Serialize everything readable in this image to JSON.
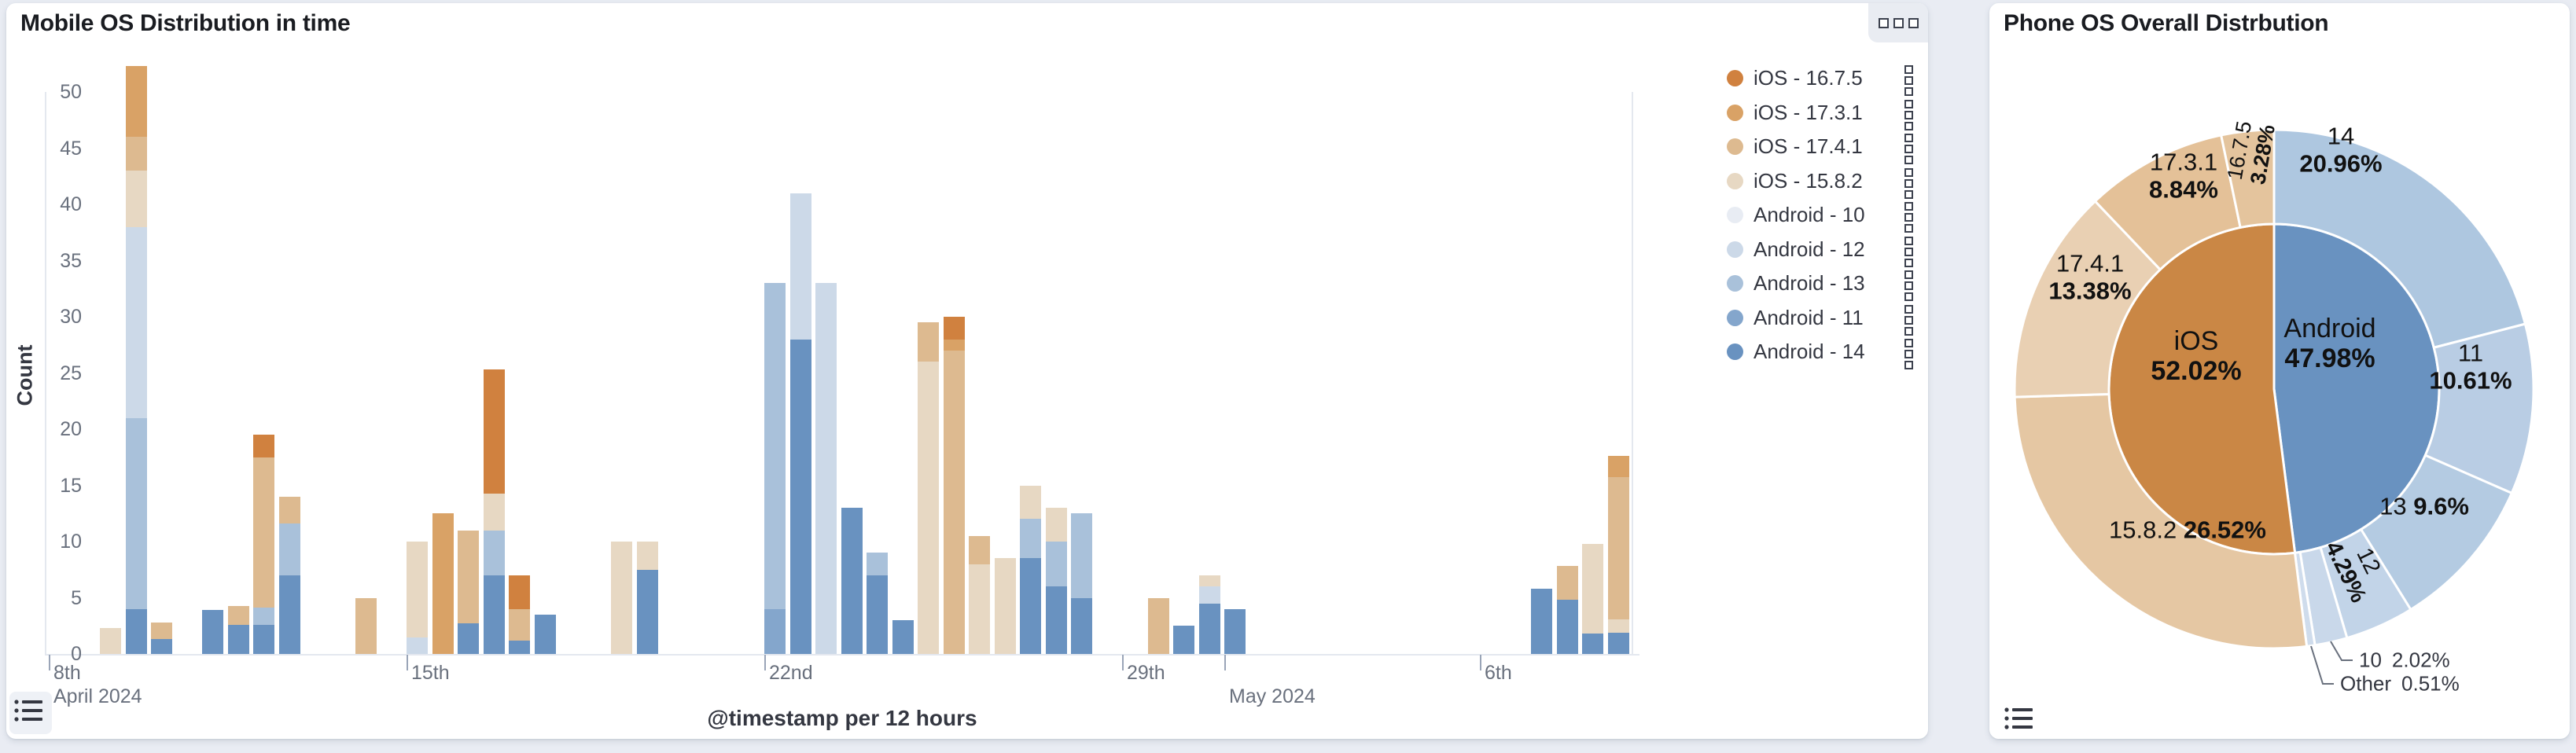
{
  "colors": {
    "page_bg": "#e9ecf3",
    "panel_bg": "#ffffff",
    "title_text": "#1a1c21",
    "axis_text": "#69707d",
    "label_text": "#343741",
    "axis_line": "#e4e8ef",
    "tick_mark": "#9aa5b8"
  },
  "left_panel": {
    "title": "Mobile OS Distribution in time",
    "legend": {
      "items": [
        {
          "label": "iOS - 16.7.5",
          "color": "#d0813f"
        },
        {
          "label": "iOS - 17.3.1",
          "color": "#d9a266"
        },
        {
          "label": "iOS - 17.4.1",
          "color": "#ddba90"
        },
        {
          "label": "iOS - 15.8.2",
          "color": "#e7d8c3"
        },
        {
          "label": "Android - 10",
          "color": "#e8ecf3"
        },
        {
          "label": "Android - 12",
          "color": "#ccd9e8"
        },
        {
          "label": "Android - 13",
          "color": "#a9c1da"
        },
        {
          "label": "Android - 11",
          "color": "#84a6cc"
        },
        {
          "label": "Android - 14",
          "color": "#6992c0"
        }
      ]
    }
  },
  "right_panel": {
    "title": "Phone OS Overall Distrbution"
  },
  "chart_data": [
    {
      "type": "bar",
      "stacked": true,
      "title": "Mobile OS Distribution in time",
      "xlabel": "@timestamp per 12 hours",
      "ylabel": "Count",
      "ylim": [
        0,
        52.5
      ],
      "grid": false,
      "legend_position": "right",
      "y_ticks": [
        0,
        5,
        10,
        15,
        20,
        25,
        30,
        35,
        40,
        45,
        50
      ],
      "x_ticks": [
        {
          "i": 2,
          "line1": "8th",
          "line2": "April 2024"
        },
        {
          "i": 16,
          "line1": "15th"
        },
        {
          "i": 30,
          "line1": "22nd"
        },
        {
          "i": 44,
          "line1": "29th"
        },
        {
          "i": 48,
          "line2": "May 2024"
        },
        {
          "i": 58,
          "line1": "6th"
        }
      ],
      "bucket_hours": 12,
      "stack_order": [
        "Android - 14",
        "Android - 11",
        "Android - 13",
        "Android - 12",
        "Android - 10",
        "iOS - 15.8.2",
        "iOS - 17.4.1",
        "iOS - 17.3.1",
        "iOS - 16.7.5"
      ],
      "series_colors": {
        "iOS - 16.7.5": "#d0813f",
        "iOS - 17.3.1": "#d9a266",
        "iOS - 17.4.1": "#ddba90",
        "iOS - 15.8.2": "#e7d8c3",
        "Android - 10": "#e8ecf3",
        "Android - 12": "#ccd9e8",
        "Android - 13": "#a9c1da",
        "Android - 11": "#84a6cc",
        "Android - 14": "#6992c0"
      },
      "bars": [
        {
          "i": 4,
          "stack": {
            "iOS - 15.8.2": 2.3
          }
        },
        {
          "i": 5,
          "stack": {
            "Android - 14": 4,
            "Android - 13": 17,
            "Android - 12": 17,
            "iOS - 15.8.2": 5,
            "iOS - 17.4.1": 3,
            "iOS - 17.3.1": 6.3
          }
        },
        {
          "i": 6,
          "stack": {
            "Android - 14": 1.3,
            "iOS - 17.4.1": 1.5
          }
        },
        {
          "i": 8,
          "stack": {
            "Android - 14": 3.9
          }
        },
        {
          "i": 9,
          "stack": {
            "Android - 14": 2.6,
            "iOS - 17.4.1": 1.7
          }
        },
        {
          "i": 10,
          "stack": {
            "Android - 14": 2.6,
            "Android - 13": 1.5,
            "iOS - 17.4.1": 13.4,
            "iOS - 16.7.5": 2
          }
        },
        {
          "i": 11,
          "stack": {
            "Android - 14": 7,
            "Android - 13": 4.6,
            "iOS - 17.4.1": 2.4
          }
        },
        {
          "i": 14,
          "stack": {
            "iOS - 17.4.1": 5
          }
        },
        {
          "i": 16,
          "stack": {
            "Android - 12": 1.5,
            "iOS - 15.8.2": 8.5
          }
        },
        {
          "i": 17,
          "stack": {
            "iOS - 17.3.1": 12.5
          }
        },
        {
          "i": 18,
          "stack": {
            "Android - 14": 2.7,
            "iOS - 17.4.1": 8.3
          }
        },
        {
          "i": 19,
          "stack": {
            "Android - 14": 7,
            "Android - 13": 4,
            "iOS - 15.8.2": 3.3,
            "iOS - 16.7.5": 11
          }
        },
        {
          "i": 20,
          "stack": {
            "Android - 14": 1.2,
            "iOS - 17.4.1": 2.8,
            "iOS - 16.7.5": 3
          }
        },
        {
          "i": 21,
          "stack": {
            "Android - 14": 3.5
          }
        },
        {
          "i": 24,
          "stack": {
            "iOS - 15.8.2": 10
          }
        },
        {
          "i": 25,
          "stack": {
            "Android - 14": 7.5,
            "iOS - 15.8.2": 2.5
          }
        },
        {
          "i": 30,
          "stack": {
            "Android - 11": 4,
            "Android - 13": 29
          }
        },
        {
          "i": 31,
          "stack": {
            "Android - 14": 28,
            "Android - 12": 13
          }
        },
        {
          "i": 32,
          "stack": {
            "Android - 12": 33
          }
        },
        {
          "i": 33,
          "stack": {
            "Android - 14": 13
          }
        },
        {
          "i": 34,
          "stack": {
            "Android - 14": 7,
            "Android - 13": 2
          }
        },
        {
          "i": 35,
          "stack": {
            "Android - 14": 3
          }
        },
        {
          "i": 36,
          "stack": {
            "iOS - 15.8.2": 26,
            "iOS - 17.4.1": 3.5
          }
        },
        {
          "i": 37,
          "stack": {
            "iOS - 17.4.1": 27,
            "iOS - 17.3.1": 1,
            "iOS - 16.7.5": 2
          }
        },
        {
          "i": 38,
          "stack": {
            "iOS - 15.8.2": 8,
            "iOS - 17.4.1": 2.5
          }
        },
        {
          "i": 39,
          "stack": {
            "iOS - 15.8.2": 8.5
          }
        },
        {
          "i": 40,
          "stack": {
            "Android - 14": 8.5,
            "Android - 13": 3.5,
            "iOS - 15.8.2": 3
          }
        },
        {
          "i": 41,
          "stack": {
            "Android - 14": 6,
            "Android - 13": 4,
            "iOS - 15.8.2": 3
          }
        },
        {
          "i": 42,
          "stack": {
            "Android - 14": 5,
            "Android - 13": 7.5
          }
        },
        {
          "i": 45,
          "stack": {
            "iOS - 17.4.1": 5
          }
        },
        {
          "i": 46,
          "stack": {
            "Android - 14": 2.5
          }
        },
        {
          "i": 47,
          "stack": {
            "Android - 14": 4.5,
            "Android - 12": 1.5,
            "iOS - 15.8.2": 1
          }
        },
        {
          "i": 48,
          "stack": {
            "Android - 14": 4
          }
        },
        {
          "i": 60,
          "stack": {
            "Android - 14": 5.8
          }
        },
        {
          "i": 61,
          "stack": {
            "Android - 14": 4.8,
            "iOS - 17.4.1": 3
          }
        },
        {
          "i": 62,
          "stack": {
            "Android - 14": 1.8,
            "iOS - 15.8.2": 8
          }
        },
        {
          "i": 63,
          "stack": {
            "Android - 14": 1.9,
            "iOS - 15.8.2": 1.2,
            "iOS - 17.4.1": 12.6,
            "iOS - 17.3.1": 1.9
          }
        }
      ]
    },
    {
      "type": "pie",
      "subtype": "sunburst",
      "title": "Phone OS Overall Distrbution",
      "start_angle": "top",
      "direction": "clockwise",
      "inner_ring": [
        {
          "name": "Android",
          "pct": 47.98,
          "color": "#6992c0"
        },
        {
          "name": "iOS",
          "pct": 52.02,
          "color": "#ca8745"
        }
      ],
      "outer_ring": [
        {
          "name": "14",
          "parent": "Android",
          "pct": 20.96,
          "color": "#aec7e0"
        },
        {
          "name": "11",
          "parent": "Android",
          "pct": 10.61,
          "color": "#b9cde4"
        },
        {
          "name": "13",
          "parent": "Android",
          "pct": 9.6,
          "color": "#b4cbe2"
        },
        {
          "name": "12",
          "parent": "Android",
          "pct": 4.29,
          "color": "#c2d4e8",
          "rotated": true
        },
        {
          "name": "10",
          "parent": "Android",
          "pct": 2.02,
          "color": "#c9d8ea",
          "callout": true
        },
        {
          "name": "Other",
          "parent": "Android",
          "pct": 0.51,
          "color": "#cfdcec",
          "callout": true
        },
        {
          "name": "15.8.2",
          "parent": "iOS",
          "pct": 26.52,
          "color": "#e5c7a3"
        },
        {
          "name": "17.4.1",
          "parent": "iOS",
          "pct": 13.38,
          "color": "#e9d0b3"
        },
        {
          "name": "17.3.1",
          "parent": "iOS",
          "pct": 8.84,
          "color": "#e4c198"
        },
        {
          "name": "16.7.5",
          "parent": "iOS",
          "pct": 3.28,
          "color": "#e4c49d",
          "rotated": true
        }
      ]
    }
  ]
}
